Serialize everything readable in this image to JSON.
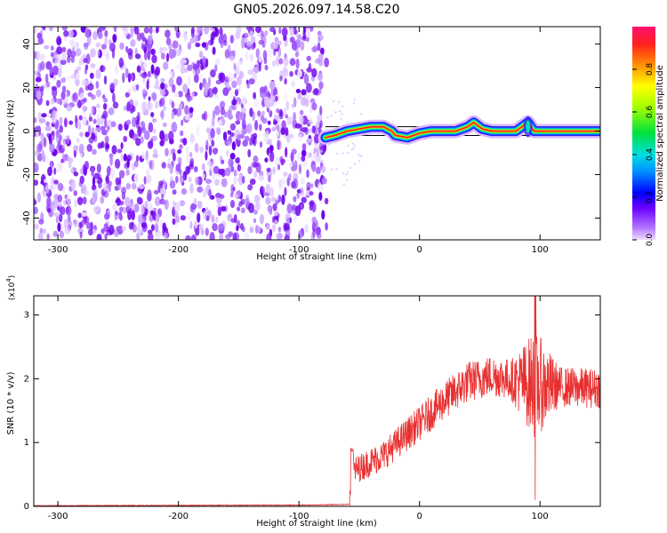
{
  "title": "GN05.2026.097.14.58.C20",
  "chart_data": [
    {
      "type": "heatmap",
      "xlabel": "Height of straight line (km)",
      "ylabel": "Frequency (Hz)",
      "xlim": [
        -320,
        150
      ],
      "ylim": [
        -50,
        48
      ],
      "x_ticks": [
        -300,
        -200,
        -100,
        0,
        100
      ],
      "y_ticks": [
        -40,
        -20,
        0,
        20,
        40
      ],
      "noise_region_x": [
        -320,
        -77
      ],
      "signal_track": [
        {
          "x": -78,
          "y": -3
        },
        {
          "x": -70,
          "y": -2
        },
        {
          "x": -60,
          "y": 0
        },
        {
          "x": -50,
          "y": 1
        },
        {
          "x": -40,
          "y": 2
        },
        {
          "x": -30,
          "y": 2
        },
        {
          "x": -23,
          "y": 0
        },
        {
          "x": -20,
          "y": -2
        },
        {
          "x": -10,
          "y": -3
        },
        {
          "x": 0,
          "y": -1
        },
        {
          "x": 10,
          "y": 0
        },
        {
          "x": 30,
          "y": 0
        },
        {
          "x": 40,
          "y": 2
        },
        {
          "x": 45,
          "y": 4
        },
        {
          "x": 52,
          "y": 1
        },
        {
          "x": 60,
          "y": 0
        },
        {
          "x": 80,
          "y": 0
        },
        {
          "x": 90,
          "y": 4
        },
        {
          "x": 95,
          "y": 0
        },
        {
          "x": 150,
          "y": 0
        }
      ],
      "reference_lines_y": [
        -2,
        2
      ],
      "colorbar": {
        "label": "Normalized spectral amplitude",
        "range": [
          0,
          1
        ],
        "ticks": [
          "0.0",
          "0.2",
          "0.4",
          "0.6",
          "0.8"
        ]
      }
    },
    {
      "type": "line",
      "xlabel": "Height of straight line (km)",
      "ylabel": "SNR (10 * v/v)",
      "y_multiplier_base": "(x10",
      "y_multiplier_exp": "4",
      "y_multiplier_close": ")",
      "xlim": [
        -320,
        150
      ],
      "ylim": [
        0,
        3.3
      ],
      "x_ticks": [
        -300,
        -200,
        -100,
        0,
        100
      ],
      "y_ticks": [
        0,
        1,
        2,
        3
      ],
      "color": "#e83030",
      "envelope": [
        {
          "x": -320,
          "y": 0.01
        },
        {
          "x": -100,
          "y": 0.02
        },
        {
          "x": -58,
          "y": 0.03
        },
        {
          "x": -55,
          "y": 0.55
        },
        {
          "x": -30,
          "y": 0.8
        },
        {
          "x": 0,
          "y": 1.3
        },
        {
          "x": 20,
          "y": 1.65
        },
        {
          "x": 40,
          "y": 1.95
        },
        {
          "x": 60,
          "y": 2.05
        },
        {
          "x": 85,
          "y": 1.95
        },
        {
          "x": 100,
          "y": 1.9
        },
        {
          "x": 120,
          "y": 1.87
        },
        {
          "x": 150,
          "y": 1.85
        }
      ],
      "spike": {
        "x": 96,
        "max": 3.3,
        "min": 0.1
      }
    }
  ]
}
